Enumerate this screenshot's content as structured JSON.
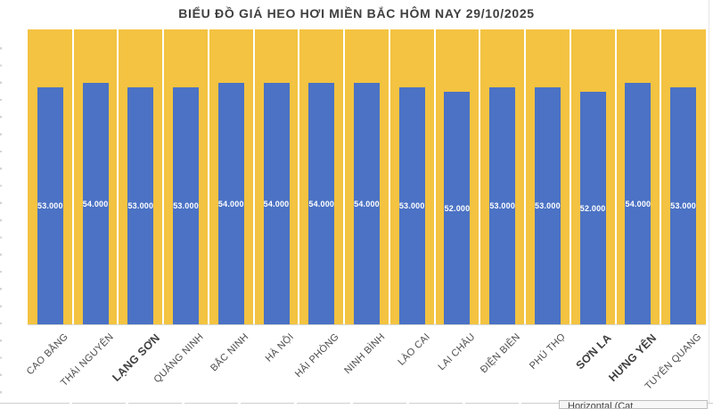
{
  "chart_data": {
    "type": "bar",
    "title": "BIỂU ĐỒ GIÁ HEO HƠI MIỀN BẮC HÔM NAY 29/10/2025",
    "categories": [
      "CAO BẰNG",
      "THÁI NGUYÊN",
      "LẠNG SƠN",
      "QUẢNG NINH",
      "BẮC NINH",
      "HÀ NỘI",
      "HẢI PHÒNG",
      "NINH BÌNH",
      "LÀO CAI",
      "LAI CHÂU",
      "ĐIỆN BIÊN",
      "PHÚ THỌ",
      "SƠN LA",
      "HƯNG YÊN",
      "TUYÊN QUANG"
    ],
    "values": [
      53000,
      54000,
      53000,
      53000,
      54000,
      54000,
      54000,
      54000,
      53000,
      52000,
      53000,
      53000,
      52000,
      54000,
      53000
    ],
    "value_labels": [
      "53.000",
      "54.000",
      "53.000",
      "53.000",
      "54.000",
      "54.000",
      "54.000",
      "54.000",
      "53.000",
      "52.000",
      "53.000",
      "53.000",
      "52.000",
      "54.000",
      "53.000"
    ],
    "bold_label_indices": [
      2,
      12,
      13
    ],
    "xlabel": "",
    "ylabel": "",
    "ylim": [
      0,
      66000
    ],
    "grid": "white vertical separators between categories; no y-axis ticks shown",
    "legend_position": "none",
    "colors": {
      "plot_background": "#F3C341",
      "bar_fill": "#4B72C4",
      "value_label_text": "#FFFFFF",
      "axis_label_text": "#4D4D4D",
      "title_text": "#3F3F3F"
    }
  },
  "tooltip": {
    "text": "Horizontal (Cat"
  }
}
